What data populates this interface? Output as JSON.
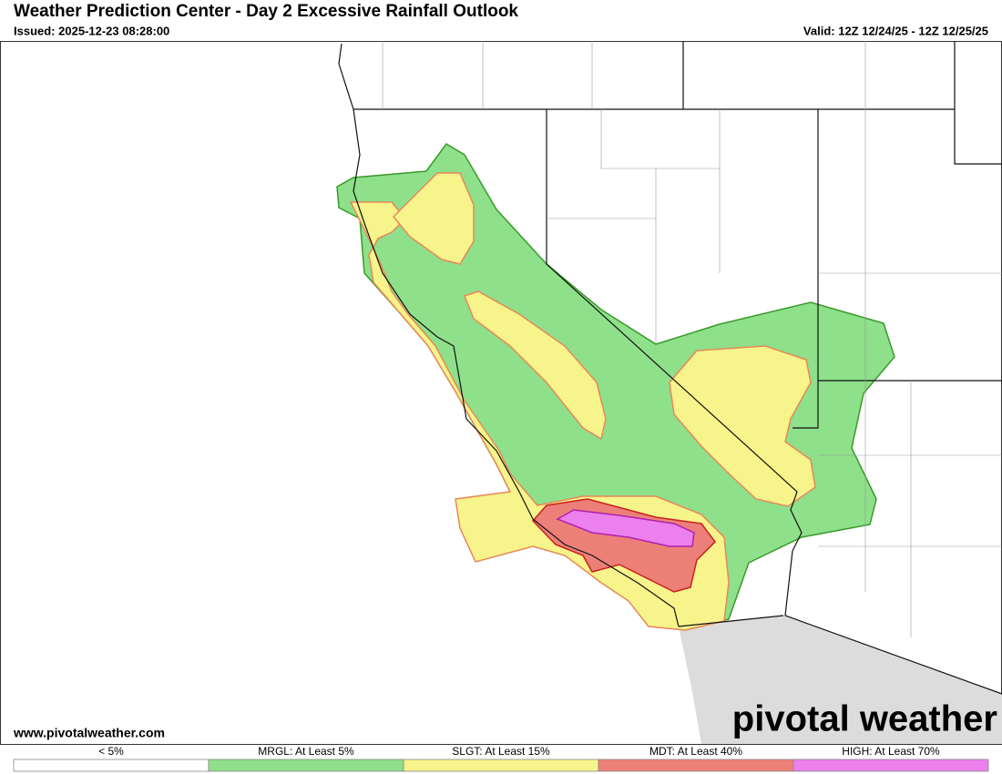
{
  "header": {
    "title": "Weather Prediction Center - Day 2 Excessive Rainfall Outlook",
    "issued": "Issued: 2025-12-23 08:28:00",
    "valid": "Valid: 12Z 12/24/25 - 12Z 12/25/25"
  },
  "footer": {
    "website": "www.pivotalweather.com",
    "logo": "pivotal weather"
  },
  "legend": {
    "items": [
      {
        "label": "< 5%",
        "color": "#ffffff"
      },
      {
        "label": "MRGL: At Least 5%",
        "color": "#8ee08a"
      },
      {
        "label": "SLGT: At Least 15%",
        "color": "#f6f48a"
      },
      {
        "label": "MDT: At Least 40%",
        "color": "#ec8078"
      },
      {
        "label": "HIGH: At Least 70%",
        "color": "#ec80ec"
      }
    ]
  }
}
